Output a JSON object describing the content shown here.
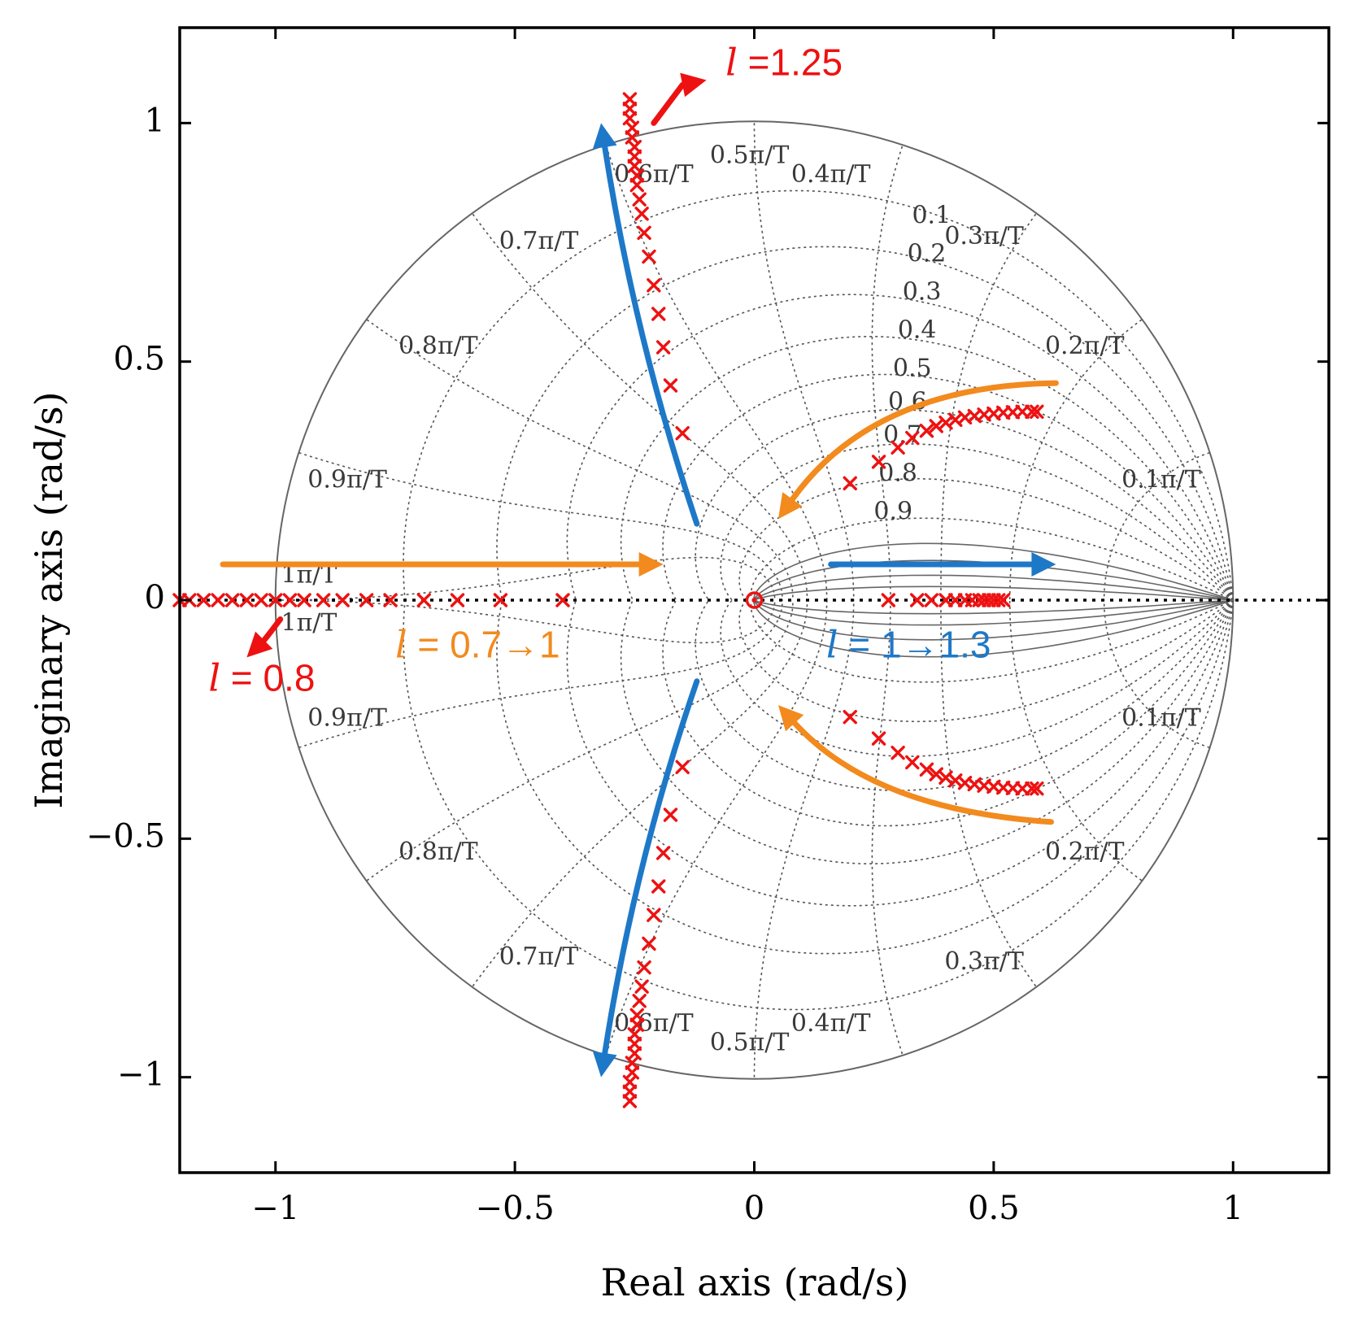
{
  "chart_data": {
    "type": "scatter",
    "title": "",
    "xlabel": "Real axis (rad/s)",
    "ylabel": "Imaginary axis (rad/s)",
    "xlim": [
      -1.2,
      1.2
    ],
    "ylim": [
      -1.2,
      1.2
    ],
    "xticks": [
      {
        "value": -1,
        "label": "−1"
      },
      {
        "value": -0.5,
        "label": "−0.5"
      },
      {
        "value": 0,
        "label": "0"
      },
      {
        "value": 0.5,
        "label": "0.5"
      },
      {
        "value": 1,
        "label": "1"
      }
    ],
    "yticks": [
      {
        "value": 1,
        "label": "1"
      },
      {
        "value": 0.5,
        "label": "0.5"
      },
      {
        "value": 0,
        "label": "0"
      },
      {
        "value": -0.5,
        "label": "−0.5"
      },
      {
        "value": -1,
        "label": "−1"
      }
    ],
    "grid": "z-plane damping / natural frequency grid",
    "zeta_labels": [
      {
        "label": "0.1",
        "x": 0.37,
        "y": 0.79
      },
      {
        "label": "0.2",
        "x": 0.36,
        "y": 0.71
      },
      {
        "label": "0.3",
        "x": 0.35,
        "y": 0.63
      },
      {
        "label": "0.4",
        "x": 0.34,
        "y": 0.55
      },
      {
        "label": "0.5",
        "x": 0.33,
        "y": 0.47
      },
      {
        "label": "0.6",
        "x": 0.32,
        "y": 0.4
      },
      {
        "label": "0.7",
        "x": 0.31,
        "y": 0.33
      },
      {
        "label": "0.8",
        "x": 0.3,
        "y": 0.25
      },
      {
        "label": "0.9",
        "x": 0.29,
        "y": 0.17
      }
    ],
    "wn_labels": [
      {
        "label": "0.1π/T",
        "x": 0.85,
        "y": 0.25
      },
      {
        "label": "0.2π/T",
        "x": 0.69,
        "y": 0.53
      },
      {
        "label": "0.3π/T",
        "x": 0.48,
        "y": 0.76
      },
      {
        "label": "0.4π/T",
        "x": 0.16,
        "y": 0.89
      },
      {
        "label": "0.5π/T",
        "x": -0.01,
        "y": 0.93
      },
      {
        "label": "0.6π/T",
        "x": -0.21,
        "y": 0.89
      },
      {
        "label": "0.7π/T",
        "x": -0.45,
        "y": 0.75
      },
      {
        "label": "0.8π/T",
        "x": -0.66,
        "y": 0.53
      },
      {
        "label": "0.9π/T",
        "x": -0.85,
        "y": 0.25
      },
      {
        "label": "1π/T",
        "x": -0.93,
        "y": 0.05
      },
      {
        "label": "1π/T",
        "x": -0.93,
        "y": -0.05
      },
      {
        "label": "0.9π/T",
        "x": -0.85,
        "y": -0.25
      },
      {
        "label": "0.8π/T",
        "x": -0.66,
        "y": -0.53
      },
      {
        "label": "0.7π/T",
        "x": -0.45,
        "y": -0.75
      },
      {
        "label": "0.6π/T",
        "x": -0.21,
        "y": -0.89
      },
      {
        "label": "0.5π/T",
        "x": -0.01,
        "y": -0.93
      },
      {
        "label": "0.4π/T",
        "x": 0.16,
        "y": -0.89
      },
      {
        "label": "0.3π/T",
        "x": 0.48,
        "y": -0.76
      },
      {
        "label": "0.2π/T",
        "x": 0.69,
        "y": -0.53
      },
      {
        "label": "0.1π/T",
        "x": 0.85,
        "y": -0.25
      }
    ],
    "series": [
      {
        "name": "poles",
        "marker": "x",
        "color": "#ee1111",
        "points": [
          [
            -1.2,
            0
          ],
          [
            -1.18,
            0
          ],
          [
            -1.15,
            0
          ],
          [
            -1.12,
            0
          ],
          [
            -1.09,
            0
          ],
          [
            -1.06,
            0
          ],
          [
            -1.03,
            0
          ],
          [
            -1.0,
            0
          ],
          [
            -0.97,
            0
          ],
          [
            -0.94,
            0
          ],
          [
            -0.9,
            0
          ],
          [
            -0.86,
            0
          ],
          [
            -0.81,
            0
          ],
          [
            -0.76,
            0
          ],
          [
            -0.69,
            0
          ],
          [
            -0.62,
            0
          ],
          [
            -0.53,
            0
          ],
          [
            -0.4,
            0
          ],
          [
            -0.26,
            1.05
          ],
          [
            -0.26,
            1.03
          ],
          [
            -0.26,
            1.01
          ],
          [
            -0.255,
            0.99
          ],
          [
            -0.255,
            0.97
          ],
          [
            -0.25,
            0.95
          ],
          [
            -0.25,
            0.93
          ],
          [
            -0.25,
            0.91
          ],
          [
            -0.245,
            0.89
          ],
          [
            -0.245,
            0.87
          ],
          [
            -0.24,
            0.84
          ],
          [
            -0.235,
            0.81
          ],
          [
            -0.23,
            0.77
          ],
          [
            -0.22,
            0.72
          ],
          [
            -0.21,
            0.66
          ],
          [
            -0.2,
            0.6
          ],
          [
            -0.19,
            0.53
          ],
          [
            -0.175,
            0.45
          ],
          [
            -0.15,
            0.35
          ],
          [
            -0.26,
            -1.05
          ],
          [
            -0.26,
            -1.03
          ],
          [
            -0.26,
            -1.01
          ],
          [
            -0.255,
            -0.99
          ],
          [
            -0.255,
            -0.97
          ],
          [
            -0.25,
            -0.95
          ],
          [
            -0.25,
            -0.93
          ],
          [
            -0.25,
            -0.91
          ],
          [
            -0.245,
            -0.89
          ],
          [
            -0.245,
            -0.87
          ],
          [
            -0.24,
            -0.84
          ],
          [
            -0.235,
            -0.81
          ],
          [
            -0.23,
            -0.77
          ],
          [
            -0.22,
            -0.72
          ],
          [
            -0.21,
            -0.66
          ],
          [
            -0.2,
            -0.6
          ],
          [
            -0.19,
            -0.53
          ],
          [
            -0.175,
            -0.45
          ],
          [
            -0.15,
            -0.35
          ],
          [
            0.2,
            0.245
          ],
          [
            0.26,
            0.29
          ],
          [
            0.3,
            0.32
          ],
          [
            0.33,
            0.34
          ],
          [
            0.36,
            0.355
          ],
          [
            0.38,
            0.365
          ],
          [
            0.4,
            0.372
          ],
          [
            0.42,
            0.378
          ],
          [
            0.44,
            0.383
          ],
          [
            0.46,
            0.386
          ],
          [
            0.48,
            0.389
          ],
          [
            0.5,
            0.391
          ],
          [
            0.52,
            0.393
          ],
          [
            0.54,
            0.394
          ],
          [
            0.56,
            0.395
          ],
          [
            0.58,
            0.395
          ],
          [
            0.59,
            0.395
          ],
          [
            0.2,
            -0.245
          ],
          [
            0.26,
            -0.29
          ],
          [
            0.3,
            -0.32
          ],
          [
            0.33,
            -0.34
          ],
          [
            0.36,
            -0.355
          ],
          [
            0.38,
            -0.365
          ],
          [
            0.4,
            -0.372
          ],
          [
            0.42,
            -0.378
          ],
          [
            0.44,
            -0.383
          ],
          [
            0.46,
            -0.386
          ],
          [
            0.48,
            -0.389
          ],
          [
            0.5,
            -0.391
          ],
          [
            0.52,
            -0.393
          ],
          [
            0.54,
            -0.394
          ],
          [
            0.56,
            -0.395
          ],
          [
            0.58,
            -0.395
          ],
          [
            0.59,
            -0.395
          ],
          [
            0.28,
            0
          ],
          [
            0.34,
            0
          ],
          [
            0.37,
            0
          ],
          [
            0.4,
            0
          ],
          [
            0.42,
            0
          ],
          [
            0.44,
            0
          ],
          [
            0.455,
            0
          ],
          [
            0.47,
            0
          ],
          [
            0.48,
            0
          ],
          [
            0.49,
            0
          ],
          [
            0.5,
            0
          ],
          [
            0.51,
            0
          ],
          [
            0.52,
            0
          ]
        ]
      },
      {
        "name": "zero",
        "marker": "o",
        "color": "#ee1111",
        "points": [
          [
            0,
            0
          ]
        ]
      }
    ],
    "annotations": [
      {
        "text": "l =1.25",
        "italic_prefix": "l",
        "rest": " =1.25",
        "color": "#ee1111",
        "x": -0.06,
        "y": 1.1
      },
      {
        "text": "l = 0.8",
        "italic_prefix": "l",
        "rest": " = 0.8",
        "color": "#ee1111",
        "x": -1.14,
        "y": -0.19
      },
      {
        "text": "l = 0.7→1",
        "italic_prefix": "l",
        "rest": " = 0.7→1",
        "color": "#f28a1e",
        "x": -0.75,
        "y": -0.12
      },
      {
        "text": "l = 1→1.3",
        "italic_prefix": "l",
        "rest": " = 1→1.3",
        "color": "#1e78c8",
        "x": 0.15,
        "y": -0.12
      }
    ],
    "arrows": [
      {
        "color": "#1e78c8",
        "kind": "curve",
        "points": [
          [
            -0.12,
            0.16
          ],
          [
            -0.25,
            0.55
          ],
          [
            -0.32,
            1.0
          ]
        ],
        "head": true
      },
      {
        "color": "#1e78c8",
        "kind": "curve",
        "points": [
          [
            -0.12,
            -0.17
          ],
          [
            -0.25,
            -0.55
          ],
          [
            -0.32,
            -1.0
          ]
        ],
        "head": true
      },
      {
        "color": "#1e78c8",
        "kind": "line",
        "points": [
          [
            0.16,
            0.075
          ],
          [
            0.63,
            0.075
          ]
        ],
        "head": true
      },
      {
        "color": "#f28a1e",
        "kind": "line",
        "points": [
          [
            -1.11,
            0.075
          ],
          [
            -0.19,
            0.075
          ]
        ],
        "head": true
      },
      {
        "color": "#f28a1e",
        "kind": "curve",
        "points": [
          [
            0.63,
            0.455
          ],
          [
            0.25,
            0.45
          ],
          [
            0.05,
            0.17
          ]
        ],
        "head": true
      },
      {
        "color": "#f28a1e",
        "kind": "curve",
        "points": [
          [
            0.62,
            -0.465
          ],
          [
            0.25,
            -0.44
          ],
          [
            0.05,
            -0.22
          ]
        ],
        "head": true
      },
      {
        "color": "#ee1111",
        "kind": "curve",
        "points": [
          [
            -0.21,
            1.0
          ],
          [
            -0.15,
            1.08
          ],
          [
            -0.1,
            1.09
          ]
        ],
        "head": true
      },
      {
        "color": "#ee1111",
        "kind": "curve",
        "points": [
          [
            -0.99,
            -0.04
          ],
          [
            -1.02,
            -0.08
          ],
          [
            -1.06,
            -0.12
          ]
        ],
        "head": true
      }
    ]
  }
}
